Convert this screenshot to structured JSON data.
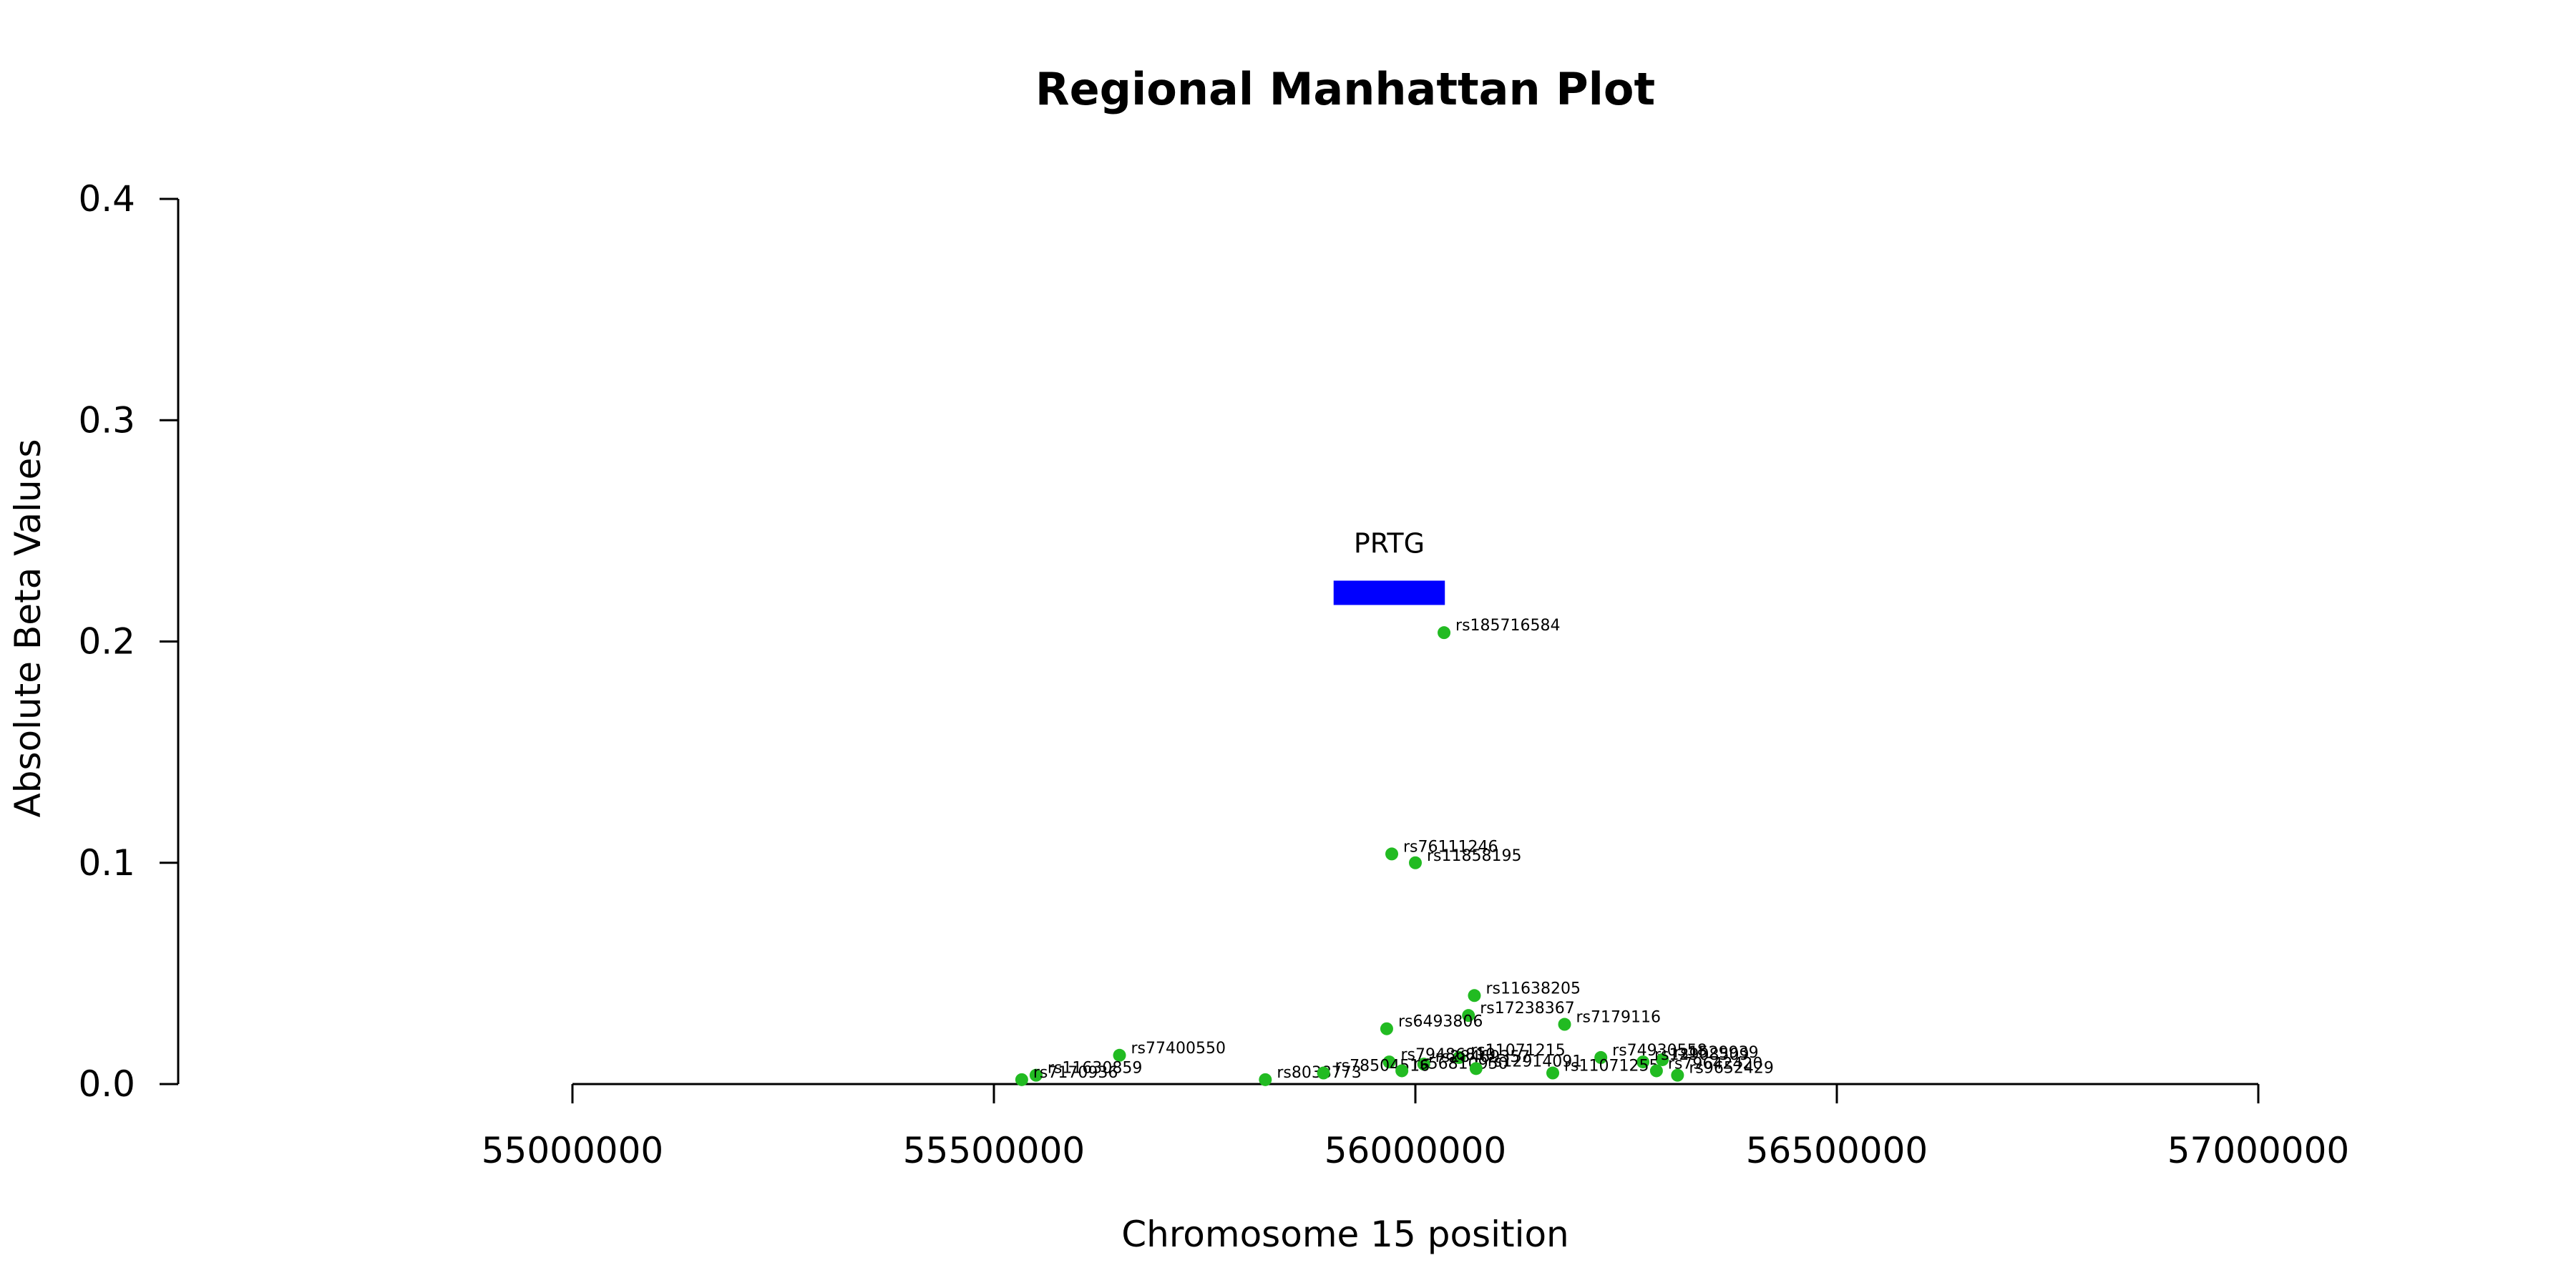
{
  "chart_data": {
    "type": "scatter",
    "title": "Regional Manhattan Plot",
    "xlabel": "Chromosome 15 position",
    "ylabel": "Absolute Beta Values",
    "xlim": [
      54530000,
      57600000
    ],
    "ylim": [
      0,
      0.4
    ],
    "x_ticks": [
      55000000,
      55500000,
      56000000,
      56500000,
      57000000
    ],
    "x_tick_labels": [
      "55000000",
      "55500000",
      "56000000",
      "56500000",
      "57000000"
    ],
    "y_ticks": [
      0,
      0.1,
      0.2,
      0.3,
      0.4
    ],
    "y_tick_labels": [
      "0.0",
      "0.1",
      "0.2",
      "0.3",
      "0.4"
    ],
    "point_color": "#22bb22",
    "gene": {
      "name": "PRTG",
      "start": 55903000,
      "end": 56035000,
      "y": 0.222,
      "color": "#0000ff"
    },
    "points": [
      {
        "label": "rs185716584",
        "x": 56034000,
        "y": 0.204
      },
      {
        "label": "rs76111246",
        "x": 55972000,
        "y": 0.104
      },
      {
        "label": "rs11858195",
        "x": 56000000,
        "y": 0.1
      },
      {
        "label": "rs11638205",
        "x": 56070000,
        "y": 0.04
      },
      {
        "label": "rs17238367",
        "x": 56063000,
        "y": 0.031
      },
      {
        "label": "rs7179116",
        "x": 56177000,
        "y": 0.027
      },
      {
        "label": "rs6493806",
        "x": 55966000,
        "y": 0.025
      },
      {
        "label": "rs77400550",
        "x": 55649000,
        "y": 0.013
      },
      {
        "label": "rs11071215",
        "x": 56052000,
        "y": 0.012
      },
      {
        "label": "rs74930558",
        "x": 56220000,
        "y": 0.012
      },
      {
        "label": "rs1529939",
        "x": 56293000,
        "y": 0.011
      },
      {
        "label": "rs12908509",
        "x": 56270000,
        "y": 0.01
      },
      {
        "label": "rs79486810",
        "x": 55969000,
        "y": 0.01
      },
      {
        "label": "rs28469357",
        "x": 56010000,
        "y": 0.009
      },
      {
        "label": "rs11630859",
        "x": 55550000,
        "y": 0.004
      },
      {
        "label": "rs7170936",
        "x": 55533000,
        "y": 0.002
      },
      {
        "label": "rs8038773",
        "x": 55822000,
        "y": 0.002
      },
      {
        "label": "rs78504516",
        "x": 55891000,
        "y": 0.005
      },
      {
        "label": "rs56810950",
        "x": 55984000,
        "y": 0.006
      },
      {
        "label": "rs12914091",
        "x": 56072000,
        "y": 0.007
      },
      {
        "label": "rs11071255",
        "x": 56163000,
        "y": 0.005
      },
      {
        "label": "rs79642420",
        "x": 56286000,
        "y": 0.006
      },
      {
        "label": "rs9652429",
        "x": 56311000,
        "y": 0.004
      }
    ]
  }
}
